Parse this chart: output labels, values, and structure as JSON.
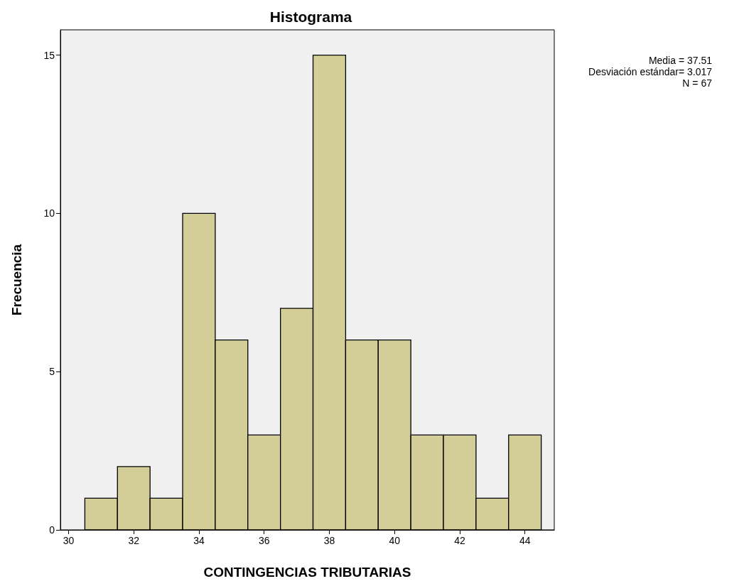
{
  "chart_data": {
    "type": "histogram",
    "title": "Histograma",
    "xlabel": "CONTINGENCIAS TRIBUTARIAS",
    "ylabel": "Frecuencia",
    "bins": [
      30.5,
      31.5,
      32.5,
      33.5,
      34.5,
      35.5,
      36.5,
      37.5,
      38.5,
      39.5,
      40.5,
      41.5,
      42.5,
      43.5,
      44.5
    ],
    "values": [
      1,
      2,
      1,
      10,
      6,
      3,
      7,
      15,
      6,
      6,
      3,
      3,
      1,
      3
    ],
    "color": "#d3ce97",
    "xlim": [
      29.75,
      44.9
    ],
    "xticks": [
      30,
      32,
      34,
      36,
      38,
      40,
      42,
      44
    ],
    "ylim": [
      0,
      15.8
    ],
    "yticks": [
      0,
      5,
      10,
      15
    ],
    "grid": false,
    "annotations": [
      "Media = 37.51",
      "Desviación estándar= 3.017",
      "N = 67"
    ]
  }
}
